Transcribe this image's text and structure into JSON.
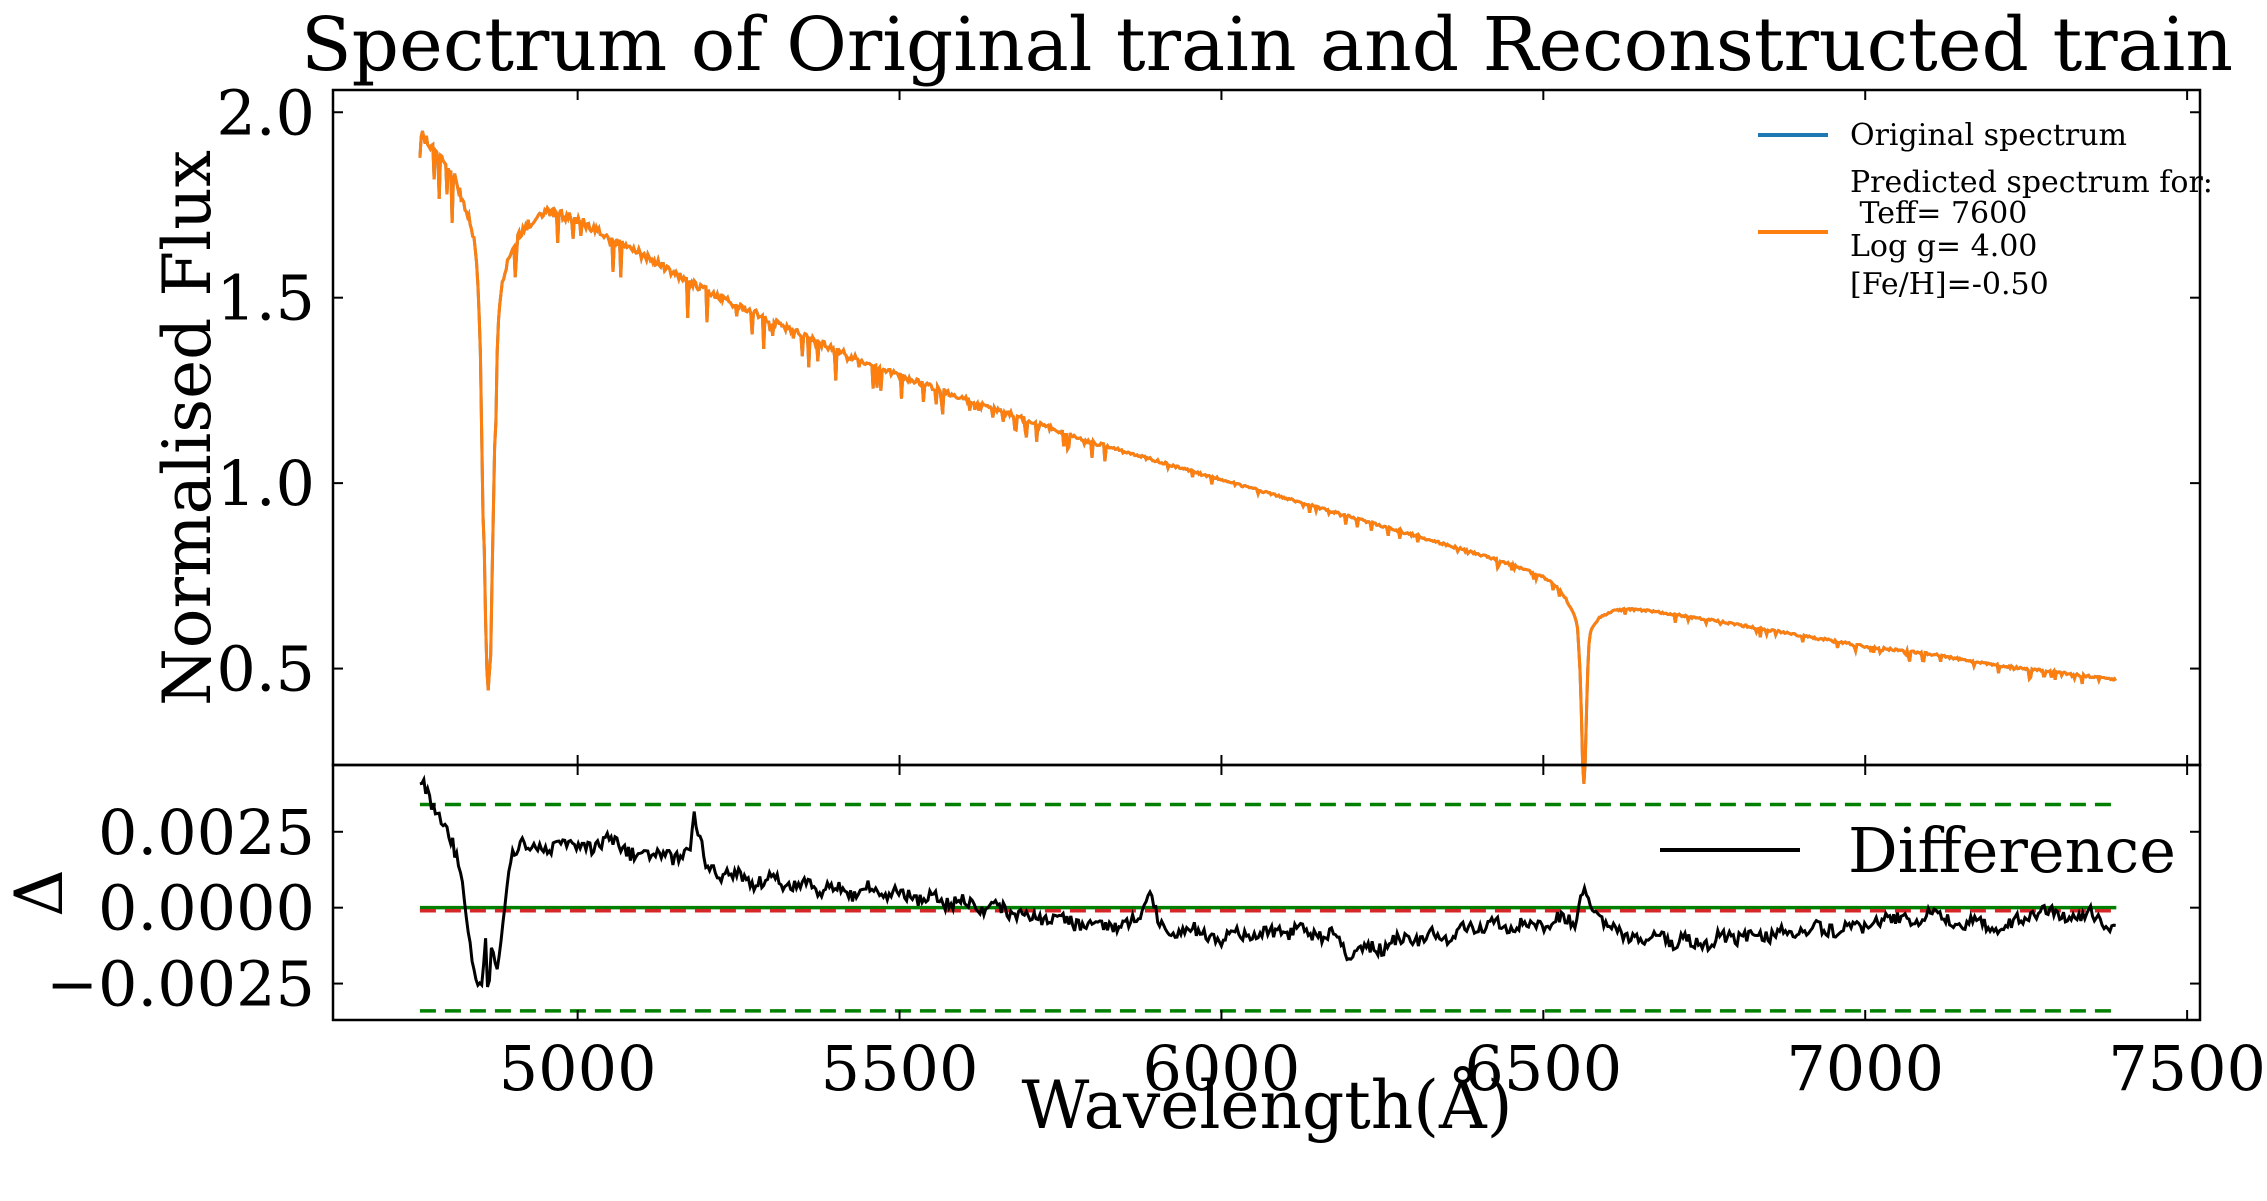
{
  "title": "Spectrum of Original train and Reconstructed train",
  "colors": {
    "original": "#1f77b4",
    "predicted": "#ff7f0e",
    "difference": "#000000",
    "zero_line_green": "#008000",
    "zero_line_red": "#d62728",
    "band": "#008000"
  },
  "chart_data": [
    {
      "type": "line",
      "name": "top-panel",
      "ylabel": "Normalised Flux",
      "xlim": [
        4620,
        7520
      ],
      "ylim": [
        0.24,
        2.06
      ],
      "yticks": [
        0.5,
        1.0,
        1.5,
        2.0
      ],
      "ytick_labels": [
        "0.5",
        "1.0",
        "1.5",
        "2.0"
      ],
      "grid": false,
      "legend_position": "top-right",
      "legend": {
        "original": "Original spectrum",
        "predicted_lines": [
          "Predicted spectrum for:",
          " Teff= 7600",
          "Log g= 4.00",
          "[Fe/H]=-0.50"
        ]
      },
      "continuum_anchors": {
        "x": [
          4755,
          4800,
          4850,
          4870,
          4900,
          4950,
          5000,
          5100,
          5200,
          5300,
          5400,
          5500,
          5600,
          5700,
          5800,
          5900,
          6000,
          6100,
          6200,
          6300,
          6400,
          6500,
          6540,
          6600,
          6700,
          6800,
          6900,
          7000,
          7100,
          7200,
          7300,
          7390
        ],
        "y": [
          1.96,
          1.9,
          1.8,
          1.7,
          1.73,
          1.76,
          1.72,
          1.62,
          1.52,
          1.44,
          1.36,
          1.29,
          1.23,
          1.17,
          1.11,
          1.06,
          1.01,
          0.96,
          0.91,
          0.86,
          0.81,
          0.76,
          0.73,
          0.68,
          0.65,
          0.62,
          0.59,
          0.56,
          0.54,
          0.51,
          0.49,
          0.47
        ]
      },
      "absorption_lines": [
        {
          "center": 4861,
          "depth": 1.05,
          "width": 7,
          "wing_depth": 0.25,
          "wing_width": 30
        },
        {
          "center": 6563,
          "depth": 0.4,
          "width": 3.5,
          "wing_depth": 0.12,
          "wing_width": 22
        }
      ],
      "series": [
        {
          "name": "Original spectrum",
          "color_key": "original"
        },
        {
          "name": "Predicted spectrum for:\n Teff= 7600\nLog g= 4.00\n[Fe/H]=-0.50",
          "color_key": "predicted"
        }
      ]
    },
    {
      "type": "line",
      "name": "bottom-panel",
      "xlabel": "Wavelength(Å)",
      "ylabel": "Δ",
      "xlim": [
        4620,
        7520
      ],
      "ylim": [
        -0.0037,
        0.0047
      ],
      "xticks": [
        5000,
        5500,
        6000,
        6500,
        7000,
        7500
      ],
      "xtick_labels": [
        "5000",
        "5500",
        "6000",
        "6500",
        "7000",
        "7500"
      ],
      "yticks": [
        -0.0025,
        0.0,
        0.0025
      ],
      "ytick_labels": [
        "−0.0025",
        "0.0000",
        "0.0025"
      ],
      "grid": false,
      "legend_position": "top-right",
      "legend": {
        "difference": "Difference"
      },
      "band_levels": [
        0.0034,
        -0.0034
      ],
      "zero_level": 0.0,
      "mean_level": -0.0001,
      "line_range": [
        4755,
        7390
      ],
      "difference": {
        "x": [
          4755,
          4765,
          4775,
          4790,
          4800,
          4810,
          4820,
          4830,
          4840,
          4850,
          4857,
          4861,
          4866,
          4872,
          4880,
          4890,
          4900,
          4915,
          4930,
          4950,
          4975,
          5000,
          5025,
          5050,
          5075,
          5100,
          5125,
          5150,
          5175,
          5180,
          5200,
          5225,
          5250,
          5275,
          5300,
          5325,
          5350,
          5375,
          5400,
          5425,
          5450,
          5475,
          5500,
          5525,
          5550,
          5575,
          5600,
          5625,
          5650,
          5675,
          5700,
          5725,
          5750,
          5775,
          5800,
          5825,
          5850,
          5875,
          5890,
          5900,
          5925,
          5950,
          5975,
          6000,
          6025,
          6050,
          6075,
          6100,
          6125,
          6150,
          6175,
          6200,
          6225,
          6250,
          6275,
          6300,
          6325,
          6350,
          6375,
          6400,
          6425,
          6450,
          6475,
          6500,
          6525,
          6550,
          6565,
          6575,
          6600,
          6625,
          6650,
          6675,
          6700,
          6725,
          6750,
          6775,
          6800,
          6825,
          6850,
          6875,
          6900,
          6925,
          6950,
          6975,
          7000,
          7025,
          7050,
          7075,
          7100,
          7125,
          7150,
          7175,
          7200,
          7225,
          7250,
          7275,
          7300,
          7325,
          7350,
          7375,
          7390
        ],
        "y": [
          0.0042,
          0.0039,
          0.0033,
          0.0028,
          0.0025,
          0.0018,
          0.0008,
          -0.0008,
          -0.0022,
          -0.0028,
          -0.001,
          -0.0033,
          -0.0012,
          -0.002,
          -0.0015,
          0.0008,
          0.0018,
          0.0022,
          0.002,
          0.0019,
          0.0021,
          0.002,
          0.0019,
          0.0023,
          0.0018,
          0.0017,
          0.0019,
          0.0016,
          0.0018,
          0.0032,
          0.0014,
          0.001,
          0.0012,
          0.0007,
          0.0011,
          0.0006,
          0.0009,
          0.0005,
          0.0008,
          0.0004,
          0.0007,
          0.0003,
          0.0006,
          0.0002,
          0.0004,
          0.0001,
          0.0003,
          -0.0001,
          0.0002,
          -0.0003,
          -0.0002,
          -0.0004,
          -0.0003,
          -0.0006,
          -0.0004,
          -0.0007,
          -0.0005,
          -0.0003,
          0.0008,
          -0.0004,
          -0.0008,
          -0.0006,
          -0.0009,
          -0.0011,
          -0.0008,
          -0.001,
          -0.0007,
          -0.0009,
          -0.0006,
          -0.001,
          -0.0008,
          -0.0017,
          -0.0012,
          -0.0014,
          -0.001,
          -0.0012,
          -0.0008,
          -0.001,
          -0.0006,
          -0.0008,
          -0.0005,
          -0.0007,
          -0.0004,
          -0.0006,
          -0.0003,
          -0.0005,
          0.0008,
          -0.0002,
          -0.0006,
          -0.0009,
          -0.0011,
          -0.0008,
          -0.0012,
          -0.001,
          -0.0013,
          -0.0009,
          -0.0011,
          -0.0008,
          -0.001,
          -0.0007,
          -0.0009,
          -0.0006,
          -0.0008,
          -0.0005,
          -0.0007,
          -0.0004,
          -0.0003,
          -0.0005,
          -0.0002,
          -0.0004,
          -0.0006,
          -0.0004,
          -0.0007,
          -0.0005,
          -0.0003,
          -0.0001,
          -0.0002,
          -0.0004,
          -0.0001,
          -0.0006,
          -0.0007
        ]
      }
    }
  ]
}
